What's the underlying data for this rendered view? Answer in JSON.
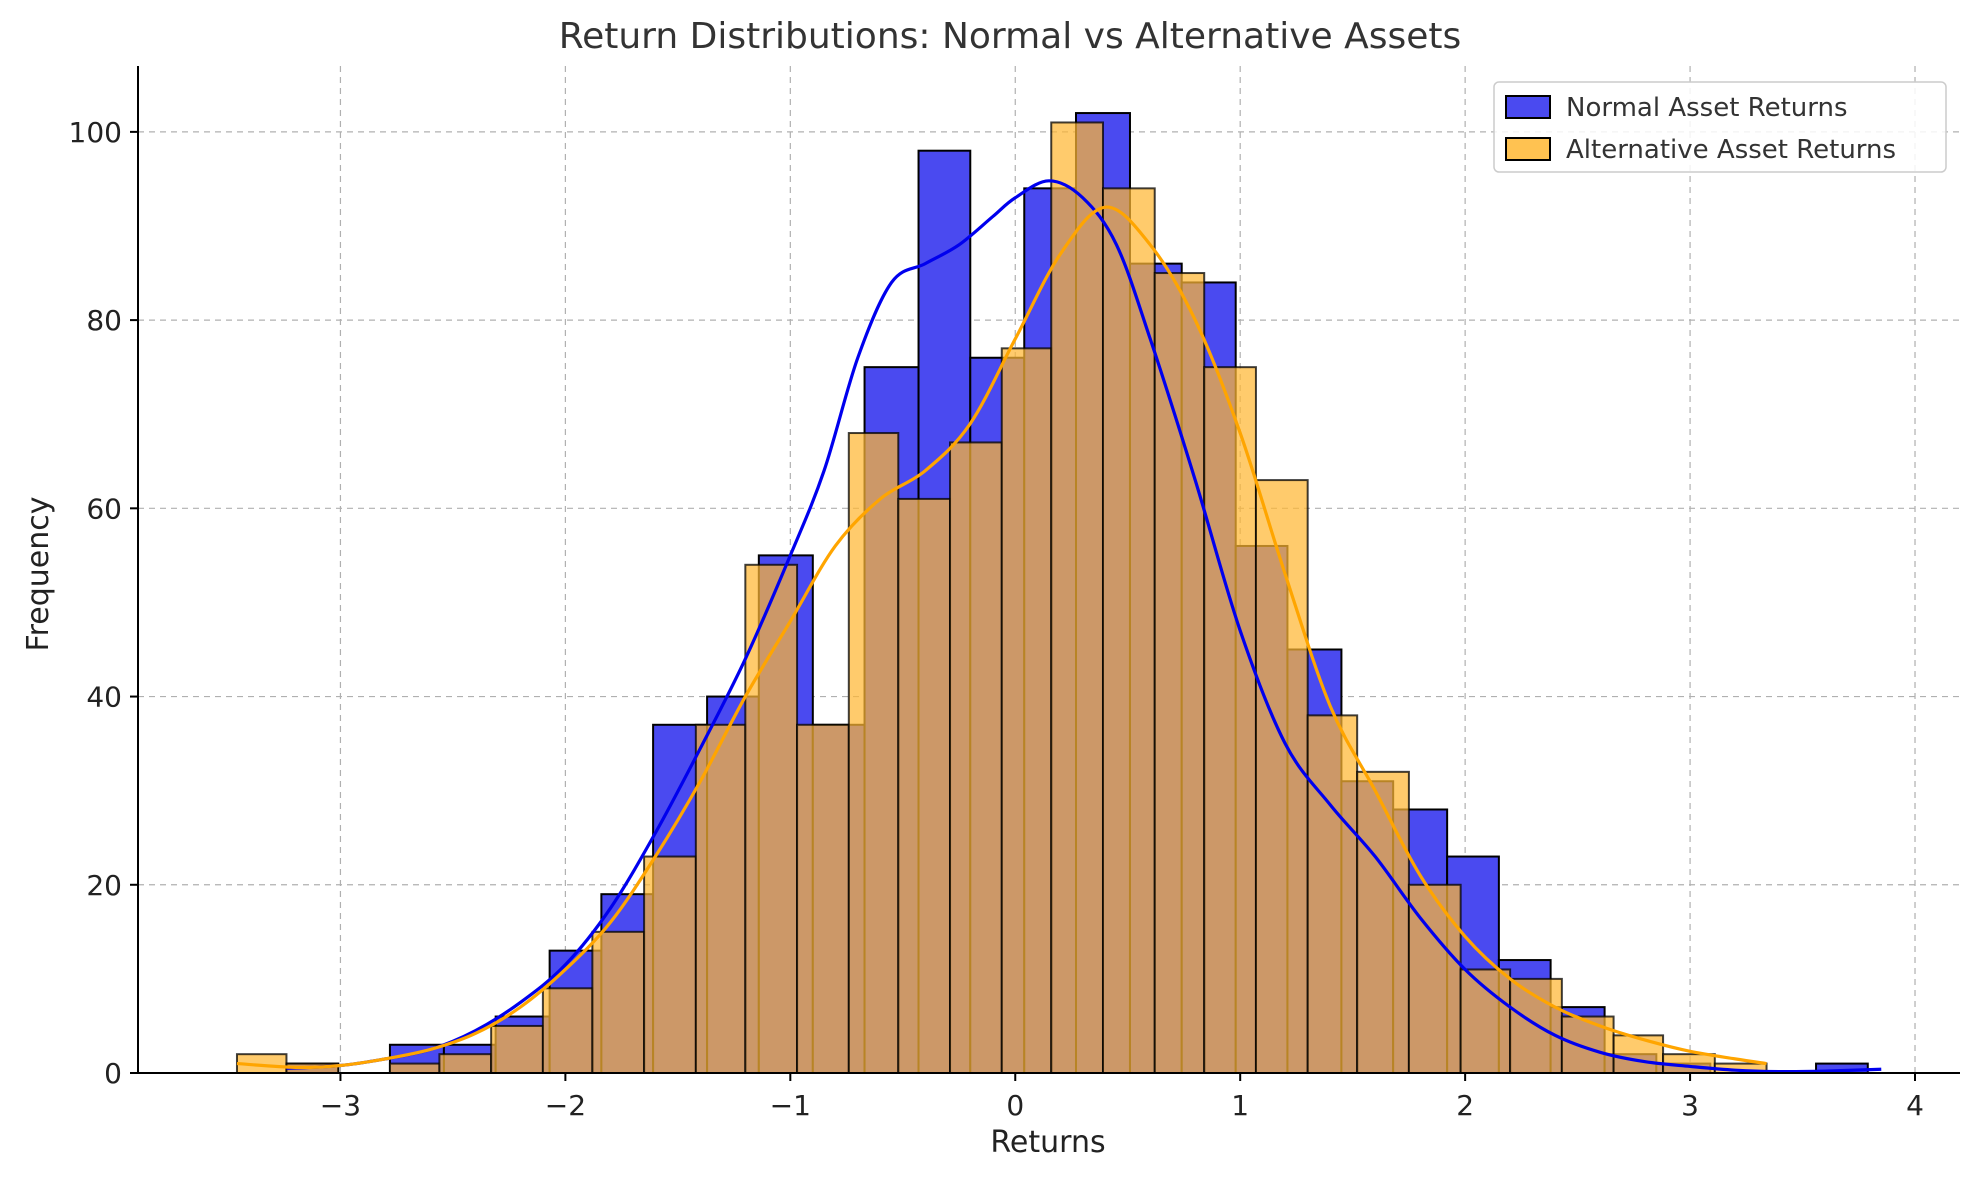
{
  "chart_data": {
    "type": "bar",
    "subtype": "histogram-with-kde",
    "title": "Return Distributions: Normal vs Alternative Assets",
    "xlabel": "Returns",
    "ylabel": "Frequency",
    "xlim": [
      -3.9,
      4.2
    ],
    "ylim": [
      0,
      107
    ],
    "xticks": [
      -3,
      -2,
      -1,
      0,
      1,
      2,
      3,
      4
    ],
    "xtick_labels": [
      "−3",
      "−2",
      "−1",
      "0",
      "1",
      "2",
      "3",
      "4"
    ],
    "yticks": [
      0,
      20,
      40,
      60,
      80,
      100
    ],
    "ytick_labels": [
      "0",
      "20",
      "40",
      "60",
      "80",
      "100"
    ],
    "grid": true,
    "legend_position": "top-right",
    "series": [
      {
        "name": "Normal Asset Returns",
        "color": "#0000ff",
        "bar_color": "#4a4af0",
        "kde_color": "#0000ee",
        "bin_edges": [
          -3.24,
          -3.01,
          -2.78,
          -2.54,
          -2.31,
          -2.07,
          -1.84,
          -1.61,
          -1.37,
          -1.14,
          -0.9,
          -0.67,
          -0.43,
          -0.2,
          0.04,
          0.27,
          0.51,
          0.74,
          0.98,
          1.21,
          1.45,
          1.68,
          1.92,
          2.15,
          2.38,
          2.62,
          2.85,
          3.09,
          3.32,
          3.56,
          3.79
        ],
        "counts": [
          1,
          0,
          3,
          3,
          6,
          13,
          19,
          37,
          40,
          55,
          37,
          75,
          98,
          76,
          94,
          102,
          86,
          84,
          56,
          45,
          31,
          28,
          23,
          12,
          7,
          2,
          1,
          0,
          0,
          1
        ],
        "kde": [
          [
            -3.24,
            0.5
          ],
          [
            -3.0,
            0.8
          ],
          [
            -2.8,
            1.5
          ],
          [
            -2.6,
            2.5
          ],
          [
            -2.4,
            4.5
          ],
          [
            -2.2,
            7.5
          ],
          [
            -2.0,
            11.5
          ],
          [
            -1.8,
            17.5
          ],
          [
            -1.6,
            25.5
          ],
          [
            -1.4,
            34.5
          ],
          [
            -1.2,
            44
          ],
          [
            -1.0,
            55
          ],
          [
            -0.85,
            64
          ],
          [
            -0.7,
            76
          ],
          [
            -0.55,
            84
          ],
          [
            -0.4,
            86
          ],
          [
            -0.25,
            88
          ],
          [
            -0.1,
            91
          ],
          [
            0.0,
            93
          ],
          [
            0.15,
            94.8
          ],
          [
            0.3,
            93
          ],
          [
            0.45,
            88
          ],
          [
            0.6,
            78
          ],
          [
            0.8,
            63
          ],
          [
            1.0,
            47
          ],
          [
            1.2,
            35
          ],
          [
            1.4,
            28.5
          ],
          [
            1.6,
            23
          ],
          [
            1.8,
            16.5
          ],
          [
            2.0,
            11
          ],
          [
            2.2,
            7
          ],
          [
            2.4,
            4
          ],
          [
            2.6,
            2.2
          ],
          [
            2.8,
            1.2
          ],
          [
            3.0,
            0.7
          ],
          [
            3.2,
            0.3
          ],
          [
            3.4,
            0.15
          ],
          [
            3.6,
            0.2
          ],
          [
            3.85,
            0.4
          ]
        ]
      },
      {
        "name": "Alternative Asset Returns",
        "color": "#ffa500",
        "bar_color": "#ffb733",
        "kde_color": "#ffa500",
        "bin_edges": [
          -3.46,
          -3.24,
          -3.01,
          -2.78,
          -2.56,
          -2.33,
          -2.1,
          -1.88,
          -1.65,
          -1.42,
          -1.2,
          -0.97,
          -0.74,
          -0.52,
          -0.29,
          -0.06,
          0.16,
          0.39,
          0.62,
          0.84,
          1.07,
          1.3,
          1.52,
          1.75,
          1.98,
          2.2,
          2.43,
          2.66,
          2.88,
          3.11,
          3.34
        ],
        "counts": [
          2,
          1,
          0,
          1,
          2,
          5,
          9,
          15,
          23,
          37,
          54,
          37,
          68,
          61,
          67,
          77,
          101,
          94,
          85,
          75,
          63,
          38,
          32,
          20,
          11,
          10,
          6,
          4,
          2,
          1
        ],
        "kde": [
          [
            -3.46,
            1.0
          ],
          [
            -3.2,
            0.6
          ],
          [
            -3.0,
            0.8
          ],
          [
            -2.8,
            1.5
          ],
          [
            -2.6,
            2.5
          ],
          [
            -2.4,
            4.2
          ],
          [
            -2.2,
            7
          ],
          [
            -2.0,
            11
          ],
          [
            -1.8,
            16
          ],
          [
            -1.6,
            23
          ],
          [
            -1.4,
            31
          ],
          [
            -1.2,
            40
          ],
          [
            -1.0,
            48
          ],
          [
            -0.8,
            56
          ],
          [
            -0.6,
            61
          ],
          [
            -0.4,
            64
          ],
          [
            -0.2,
            69
          ],
          [
            0.0,
            78
          ],
          [
            0.2,
            87
          ],
          [
            0.4,
            92
          ],
          [
            0.6,
            88
          ],
          [
            0.8,
            80
          ],
          [
            1.0,
            68
          ],
          [
            1.2,
            53
          ],
          [
            1.4,
            39
          ],
          [
            1.6,
            30
          ],
          [
            1.8,
            21
          ],
          [
            2.0,
            14.5
          ],
          [
            2.2,
            10
          ],
          [
            2.4,
            7
          ],
          [
            2.6,
            5
          ],
          [
            2.8,
            3.5
          ],
          [
            3.0,
            2.3
          ],
          [
            3.2,
            1.5
          ],
          [
            3.34,
            1.0
          ]
        ]
      }
    ]
  }
}
